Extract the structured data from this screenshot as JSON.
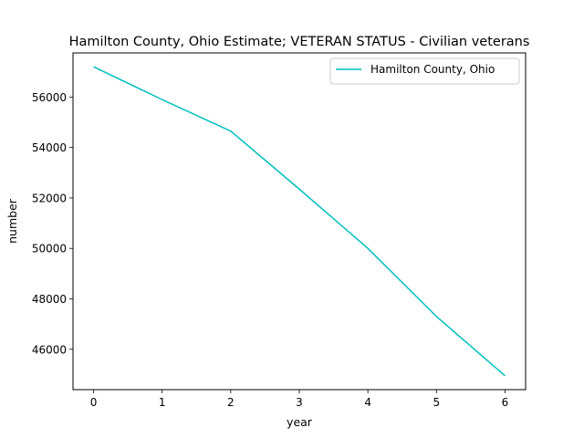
{
  "chart_data": {
    "type": "line",
    "title": "Hamilton County, Ohio Estimate; VETERAN STATUS - Civilian veterans",
    "xlabel": "year",
    "ylabel": "number",
    "xlim": [
      -0.3,
      6.3
    ],
    "ylim": [
      44400,
      57750
    ],
    "x_ticks": [
      0,
      1,
      2,
      3,
      4,
      5,
      6
    ],
    "y_ticks": [
      46000,
      48000,
      50000,
      52000,
      54000,
      56000
    ],
    "x": [
      0,
      1,
      2,
      3,
      4,
      5,
      6
    ],
    "series": [
      {
        "name": "Hamilton County, Ohio",
        "color": "#00bfbf",
        "values": [
          57200,
          55900,
          54650,
          52350,
          50000,
          47300,
          44950
        ]
      }
    ],
    "legend_position": "upper right",
    "grid": false
  }
}
